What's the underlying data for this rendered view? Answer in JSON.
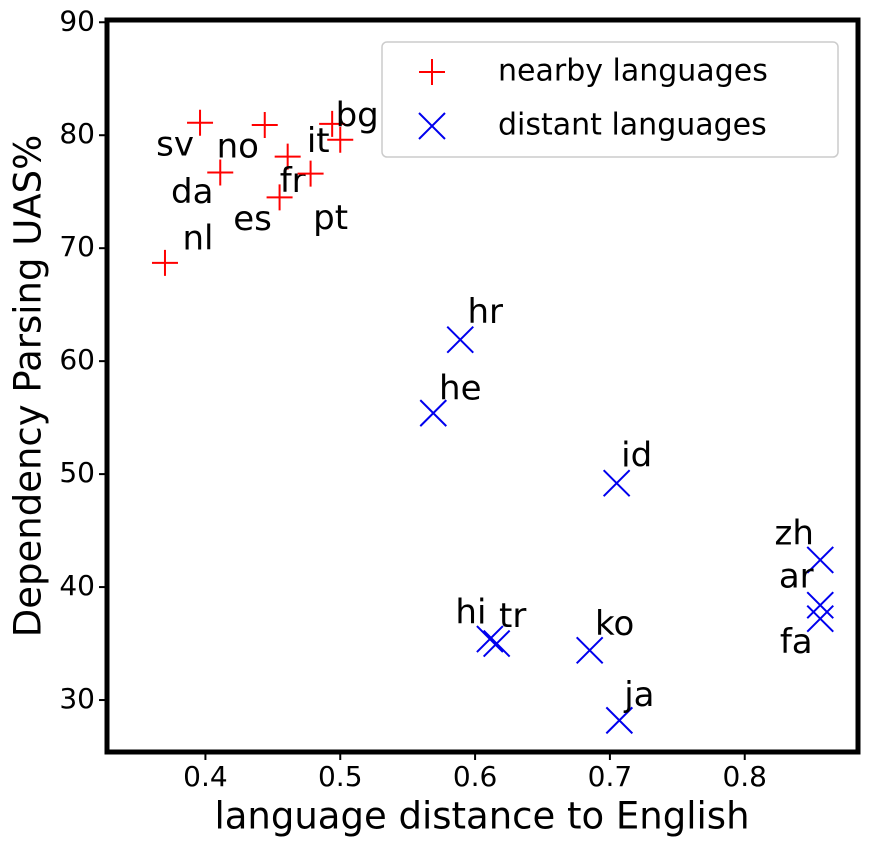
{
  "chart_data": {
    "type": "scatter",
    "xlabel": "language distance to English",
    "ylabel": "Dependency Parsing UAS%",
    "xlim": [
      0.327,
      0.884
    ],
    "ylim": [
      25.4,
      90.2
    ],
    "xticks": [
      0.4,
      0.5,
      0.6,
      0.7,
      0.8
    ],
    "yticks": [
      30,
      40,
      50,
      60,
      70,
      80,
      90
    ],
    "legend": "upper right",
    "series": [
      {
        "name": "nearby languages",
        "color": "#ff0000",
        "marker": "+",
        "labels": [
          "sv",
          "no",
          "da",
          "it",
          "fr",
          "es",
          "pt",
          "bg",
          "nl"
        ],
        "x": [
          0.396,
          0.444,
          0.411,
          0.5,
          0.461,
          0.455,
          0.478,
          0.494,
          0.37
        ],
        "values": [
          81.1,
          80.9,
          76.7,
          79.6,
          78.1,
          74.5,
          76.6,
          81.0,
          68.7
        ]
      },
      {
        "name": "distant languages",
        "color": "#0000ee",
        "marker": "x",
        "labels": [
          "hr",
          "he",
          "id",
          "zh",
          "ar",
          "fa",
          "hi",
          "tr",
          "ko",
          "ja"
        ],
        "x": [
          0.589,
          0.569,
          0.705,
          0.856,
          0.856,
          0.856,
          0.611,
          0.616,
          0.685,
          0.707
        ],
        "values": [
          61.9,
          55.4,
          49.2,
          42.4,
          38.4,
          37.2,
          35.4,
          35.0,
          34.4,
          28.2
        ]
      }
    ]
  }
}
